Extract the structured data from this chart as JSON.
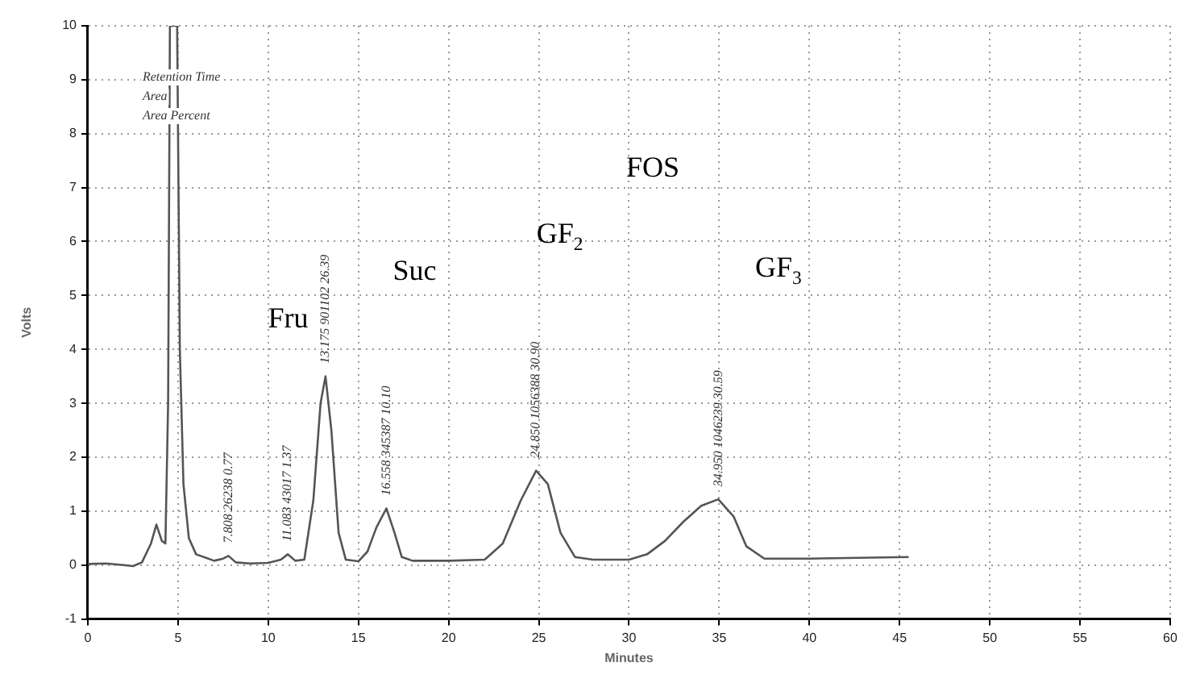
{
  "chart_data": {
    "type": "line",
    "xlabel": "Minutes",
    "ylabel": "Volts",
    "xlim": [
      0,
      60
    ],
    "xticks": [
      0,
      5,
      10,
      15,
      20,
      25,
      30,
      35,
      40,
      45,
      50,
      55,
      60
    ],
    "ylim": [
      -1,
      10
    ],
    "yticks": [
      -1,
      0,
      1,
      2,
      3,
      4,
      5,
      6,
      7,
      8,
      9,
      10
    ],
    "grid": true,
    "line_style": "solid",
    "marker": "none",
    "series": [
      {
        "color": "#555555",
        "x": [
          0,
          1,
          2,
          2.5,
          3,
          3.5,
          3.8,
          4.1,
          4.3,
          4.45,
          4.55,
          4.95,
          5.1,
          5.3,
          5.6,
          6,
          7,
          7.5,
          7.8,
          8.2,
          9,
          10,
          10.7,
          11.08,
          11.5,
          12,
          12.5,
          12.9,
          13.175,
          13.5,
          13.9,
          14.3,
          15,
          15.5,
          16,
          16.55,
          17,
          17.4,
          18,
          20,
          22,
          23,
          24,
          24.85,
          25.5,
          26.2,
          27,
          28,
          30,
          31,
          32,
          33,
          34,
          34.95,
          35.8,
          36.5,
          37.5,
          40,
          45.5
        ],
        "values": [
          0.02,
          0.03,
          0,
          -0.02,
          0.05,
          0.4,
          0.75,
          0.45,
          0.4,
          3,
          10,
          10,
          4,
          1.5,
          0.5,
          0.2,
          0.08,
          0.12,
          0.17,
          0.05,
          0.03,
          0.04,
          0.1,
          0.2,
          0.08,
          0.1,
          1.2,
          3,
          3.5,
          2.5,
          0.6,
          0.1,
          0.07,
          0.25,
          0.7,
          1.05,
          0.6,
          0.15,
          0.08,
          0.08,
          0.1,
          0.4,
          1.2,
          1.75,
          1.5,
          0.6,
          0.15,
          0.1,
          0.1,
          0.2,
          0.45,
          0.8,
          1.1,
          1.22,
          0.9,
          0.35,
          0.12,
          0.12,
          0.15
        ]
      }
    ],
    "annotations": [
      "Retention Time",
      "Area",
      "Area Percent",
      "Fru",
      "Suc",
      "GF$_{2}$",
      "FOS",
      "GF$_{3}$",
      {
        "text": "7.808 26238 0.77",
        "x": 7.8,
        "y": 0.17
      },
      {
        "text": "11.083 43017 1.37",
        "x": 11.08,
        "y": 0.2
      },
      {
        "text": "13.175 901102 26.39",
        "x": 13.175,
        "y": 3.5
      },
      {
        "text": "16.558 345387 10.10",
        "x": 16.55,
        "y": 1.05
      },
      {
        "text": "24.850 1056388 30.90",
        "x": 24.85,
        "y": 1.75
      },
      {
        "text": "34.950 1046239 30.59",
        "x": 34.95,
        "y": 1.22
      }
    ]
  }
}
